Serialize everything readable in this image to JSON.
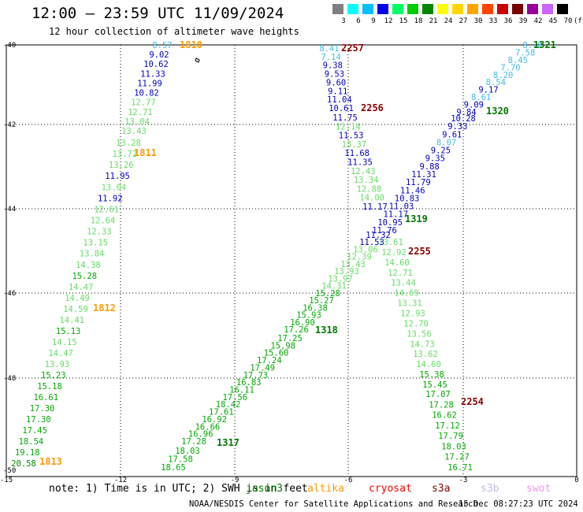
{
  "header": {
    "title": "12:00 – 23:59 UTC 11/09/2024",
    "subtitle": "12 hour collection of altimeter wave heights"
  },
  "legend": {
    "unit": "(ft)",
    "bins": [
      {
        "label": "3",
        "color": "#7f7f7f"
      },
      {
        "label": "6",
        "color": "#00ffff"
      },
      {
        "label": "9",
        "color": "#00bfff"
      },
      {
        "label": "12",
        "color": "#0000ee"
      },
      {
        "label": "15",
        "color": "#00ff66"
      },
      {
        "label": "18",
        "color": "#00cc00"
      },
      {
        "label": "21",
        "color": "#008800"
      },
      {
        "label": "24",
        "color": "#ffff00"
      },
      {
        "label": "27",
        "color": "#ffd700"
      },
      {
        "label": "30",
        "color": "#ffa500"
      },
      {
        "label": "33",
        "color": "#ff4400"
      },
      {
        "label": "36",
        "color": "#cc0000"
      },
      {
        "label": "39",
        "color": "#7a0000"
      },
      {
        "label": "42",
        "color": "#990099"
      },
      {
        "label": "45",
        "color": "#cc66ff"
      },
      {
        "label": "70",
        "color": "#000000"
      }
    ]
  },
  "map": {
    "lon_ticks": [
      "-15",
      "-12",
      "-9",
      "-6",
      "-3",
      "0"
    ],
    "lat_ticks": [
      "-40",
      "-42",
      "-44",
      "-46",
      "-48",
      "-50"
    ],
    "tracks": [
      {
        "id": "1810",
        "label": "1810",
        "label_color": "#ff9900",
        "points": [
          {
            "v": "8.57",
            "c": "#44bbee"
          },
          {
            "v": "9.02",
            "c": "#0000cc"
          },
          {
            "v": "10.62",
            "c": "#0000cc"
          },
          {
            "v": "11.33",
            "c": "#0000cc"
          },
          {
            "v": "11.99",
            "c": "#0000cc"
          },
          {
            "v": "10.82",
            "c": "#0000cc"
          },
          {
            "v": "12.77",
            "c": "#66dd66"
          },
          {
            "v": "12.71",
            "c": "#66dd66"
          },
          {
            "v": "13.04",
            "c": "#66dd66"
          },
          {
            "v": "13.43",
            "c": "#66dd66"
          }
        ]
      },
      {
        "id": "1811",
        "label": "1811",
        "label_color": "#ff9900",
        "points": [
          {
            "v": "13.28",
            "c": "#66dd66"
          },
          {
            "v": "13.72",
            "c": "#66dd66"
          },
          {
            "v": "13.26",
            "c": "#66dd66"
          },
          {
            "v": "11.95",
            "c": "#0000cc"
          },
          {
            "v": "13.04",
            "c": "#66dd66"
          },
          {
            "v": "11.92",
            "c": "#0000cc"
          },
          {
            "v": "12.61",
            "c": "#66dd66"
          },
          {
            "v": "12.64",
            "c": "#66dd66"
          },
          {
            "v": "12.33",
            "c": "#66dd66"
          },
          {
            "v": "13.15",
            "c": "#66dd66"
          },
          {
            "v": "13.84",
            "c": "#66dd66"
          },
          {
            "v": "14.38",
            "c": "#66dd66"
          },
          {
            "v": "15.28",
            "c": "#00aa00"
          },
          {
            "v": "14.47",
            "c": "#66dd66"
          },
          {
            "v": "14.49",
            "c": "#66dd66"
          }
        ]
      },
      {
        "id": "1812",
        "label": "1812",
        "label_color": "#ff9900",
        "points": [
          {
            "v": "14.59",
            "c": "#66dd66"
          },
          {
            "v": "14.41",
            "c": "#66dd66"
          },
          {
            "v": "15.13",
            "c": "#00aa00"
          },
          {
            "v": "14.15",
            "c": "#66dd66"
          },
          {
            "v": "14.47",
            "c": "#66dd66"
          },
          {
            "v": "13.93",
            "c": "#66dd66"
          },
          {
            "v": "15.23",
            "c": "#00aa00"
          },
          {
            "v": "15.18",
            "c": "#00aa00"
          },
          {
            "v": "16.61",
            "c": "#00aa00"
          },
          {
            "v": "17.30",
            "c": "#00aa00"
          },
          {
            "v": "17.30",
            "c": "#00aa00"
          },
          {
            "v": "17.45",
            "c": "#00aa00"
          },
          {
            "v": "18.54",
            "c": "#00aa00"
          },
          {
            "v": "19.18",
            "c": "#00aa00"
          },
          {
            "v": "20.58",
            "c": "#008800"
          }
        ]
      },
      {
        "id": "1813",
        "label": "1813",
        "label_color": "#ff9900",
        "points": []
      },
      {
        "id": "2257",
        "label": "2257",
        "label_color": "#880000",
        "points": [
          {
            "v": "8.41",
            "c": "#44bbee"
          },
          {
            "v": "7.14",
            "c": "#44bbee"
          },
          {
            "v": "9.38",
            "c": "#0000cc"
          },
          {
            "v": "9.53",
            "c": "#0000cc"
          },
          {
            "v": "9.60",
            "c": "#0000cc"
          },
          {
            "v": "9.11",
            "c": "#0000cc"
          },
          {
            "v": "11.04",
            "c": "#0000cc"
          },
          {
            "v": "10.61",
            "c": "#0000cc"
          }
        ]
      },
      {
        "id": "2256",
        "label": "2256",
        "label_color": "#880000",
        "points": [
          {
            "v": "11.75",
            "c": "#0000cc"
          },
          {
            "v": "12.14",
            "c": "#66dd66"
          },
          {
            "v": "11.53",
            "c": "#0000cc"
          },
          {
            "v": "13.37",
            "c": "#66dd66"
          },
          {
            "v": "11.68",
            "c": "#0000cc"
          },
          {
            "v": "11.35",
            "c": "#0000cc"
          },
          {
            "v": "12.43",
            "c": "#66dd66"
          },
          {
            "v": "13.34",
            "c": "#66dd66"
          },
          {
            "v": "12.88",
            "c": "#66dd66"
          },
          {
            "v": "14.00",
            "c": "#66dd66"
          },
          {
            "v": "11.17",
            "c": "#0000cc"
          }
        ]
      },
      {
        "id": "2255",
        "label": "2255",
        "label_color": "#880000",
        "points": [
          {
            "v": "13.61",
            "c": "#66dd66"
          },
          {
            "v": "12.92",
            "c": "#66dd66"
          },
          {
            "v": "14.60",
            "c": "#66dd66"
          },
          {
            "v": "12.71",
            "c": "#66dd66"
          },
          {
            "v": "13.44",
            "c": "#66dd66"
          },
          {
            "v": "14.69",
            "c": "#66dd66"
          },
          {
            "v": "13.31",
            "c": "#66dd66"
          },
          {
            "v": "12.93",
            "c": "#66dd66"
          },
          {
            "v": "12.70",
            "c": "#66dd66"
          },
          {
            "v": "13.56",
            "c": "#66dd66"
          },
          {
            "v": "14.73",
            "c": "#66dd66"
          },
          {
            "v": "13.62",
            "c": "#66dd66"
          },
          {
            "v": "14.60",
            "c": "#66dd66"
          },
          {
            "v": "15.38",
            "c": "#00aa00"
          },
          {
            "v": "15.45",
            "c": "#00aa00"
          }
        ]
      },
      {
        "id": "2254",
        "label": "2254",
        "label_color": "#880000",
        "points": [
          {
            "v": "17.07",
            "c": "#00aa00"
          },
          {
            "v": "17.28",
            "c": "#00aa00"
          },
          {
            "v": "16.62",
            "c": "#00aa00"
          },
          {
            "v": "17.12",
            "c": "#00aa00"
          },
          {
            "v": "17.79",
            "c": "#00aa00"
          },
          {
            "v": "18.03",
            "c": "#00aa00"
          },
          {
            "v": "17.27",
            "c": "#00aa00"
          },
          {
            "v": "16.71",
            "c": "#00aa00"
          }
        ]
      },
      {
        "id": "1321",
        "label": "1321",
        "label_color": "#007700",
        "points": [
          {
            "v": "8.78",
            "c": "#44bbee"
          },
          {
            "v": "7.58",
            "c": "#44bbee"
          },
          {
            "v": "8.45",
            "c": "#44bbee"
          },
          {
            "v": "7.70",
            "c": "#44bbee"
          },
          {
            "v": "8.20",
            "c": "#44bbee"
          },
          {
            "v": "8.54",
            "c": "#44bbee"
          },
          {
            "v": "9.17",
            "c": "#0000cc"
          },
          {
            "v": "8.61",
            "c": "#44bbee"
          },
          {
            "v": "9.09",
            "c": "#0000cc"
          },
          {
            "v": "9.84",
            "c": "#0000cc"
          }
        ]
      },
      {
        "id": "1320",
        "label": "1320",
        "label_color": "#007700",
        "points": [
          {
            "v": "10.28",
            "c": "#0000cc"
          },
          {
            "v": "9.33",
            "c": "#0000cc"
          },
          {
            "v": "9.61",
            "c": "#0000cc"
          },
          {
            "v": "8.07",
            "c": "#44bbee"
          },
          {
            "v": "9.25",
            "c": "#0000cc"
          },
          {
            "v": "9.35",
            "c": "#0000cc"
          },
          {
            "v": "9.88",
            "c": "#0000cc"
          },
          {
            "v": "11.31",
            "c": "#0000cc"
          },
          {
            "v": "11.79",
            "c": "#0000cc"
          },
          {
            "v": "11.46",
            "c": "#0000cc"
          },
          {
            "v": "10.83",
            "c": "#0000cc"
          },
          {
            "v": "11.03",
            "c": "#0000cc"
          },
          {
            "v": "11.17",
            "c": "#0000cc"
          },
          {
            "v": "10.95",
            "c": "#0000cc"
          },
          {
            "v": "11.76",
            "c": "#0000cc"
          }
        ]
      },
      {
        "id": "1319",
        "label": "1319",
        "label_color": "#007700",
        "points": [
          {
            "v": "11.32",
            "c": "#0000cc"
          },
          {
            "v": "11.53",
            "c": "#0000cc"
          },
          {
            "v": "13.06",
            "c": "#66dd66"
          },
          {
            "v": "12.39",
            "c": "#66dd66"
          },
          {
            "v": "13.43",
            "c": "#66dd66"
          },
          {
            "v": "13.93",
            "c": "#66dd66"
          },
          {
            "v": "13.97",
            "c": "#66dd66"
          },
          {
            "v": "14.31",
            "c": "#66dd66"
          },
          {
            "v": "15.28",
            "c": "#00aa00"
          },
          {
            "v": "15.27",
            "c": "#00aa00"
          },
          {
            "v": "16.38",
            "c": "#00aa00"
          },
          {
            "v": "15.93",
            "c": "#00aa00"
          },
          {
            "v": "16.90",
            "c": "#00aa00"
          },
          {
            "v": "17.26",
            "c": "#00aa00"
          }
        ]
      },
      {
        "id": "1318",
        "label": "1318",
        "label_color": "#007700",
        "points": [
          {
            "v": "17.25",
            "c": "#00aa00"
          },
          {
            "v": "15.98",
            "c": "#00aa00"
          },
          {
            "v": "15.60",
            "c": "#00aa00"
          },
          {
            "v": "17.24",
            "c": "#00aa00"
          },
          {
            "v": "17.49",
            "c": "#00aa00"
          },
          {
            "v": "17.73",
            "c": "#00aa00"
          },
          {
            "v": "16.83",
            "c": "#00aa00"
          },
          {
            "v": "16.11",
            "c": "#00aa00"
          },
          {
            "v": "17.56",
            "c": "#00aa00"
          },
          {
            "v": "18.42",
            "c": "#00aa00"
          },
          {
            "v": "17.61",
            "c": "#00aa00"
          },
          {
            "v": "16.92",
            "c": "#00aa00"
          },
          {
            "v": "16.66",
            "c": "#00aa00"
          },
          {
            "v": "16.96",
            "c": "#00aa00"
          },
          {
            "v": "17.28",
            "c": "#00aa00"
          }
        ]
      },
      {
        "id": "1317",
        "label": "1317",
        "label_color": "#007700",
        "points": [
          {
            "v": "18.03",
            "c": "#00aa00"
          },
          {
            "v": "17.58",
            "c": "#00aa00"
          },
          {
            "v": "18.65",
            "c": "#00aa00"
          }
        ]
      }
    ]
  },
  "note": "note: 1) Time is in UTC; 2) SWH is in feet",
  "satellites": [
    {
      "name": "jason3",
      "color": "#007700"
    },
    {
      "name": "altika",
      "color": "#ff9900"
    },
    {
      "name": "cryosat",
      "color": "#ff0000"
    },
    {
      "name": "s3a",
      "color": "#880000"
    },
    {
      "name": "s3b",
      "color": "#bbbbee"
    },
    {
      "name": "swot",
      "color": "#ee99ee"
    }
  ],
  "footer": "NOAA/NESDIS Center for Satellite Applications and Research",
  "footer_time": "15 Dec 08:27:23 UTC 2024"
}
